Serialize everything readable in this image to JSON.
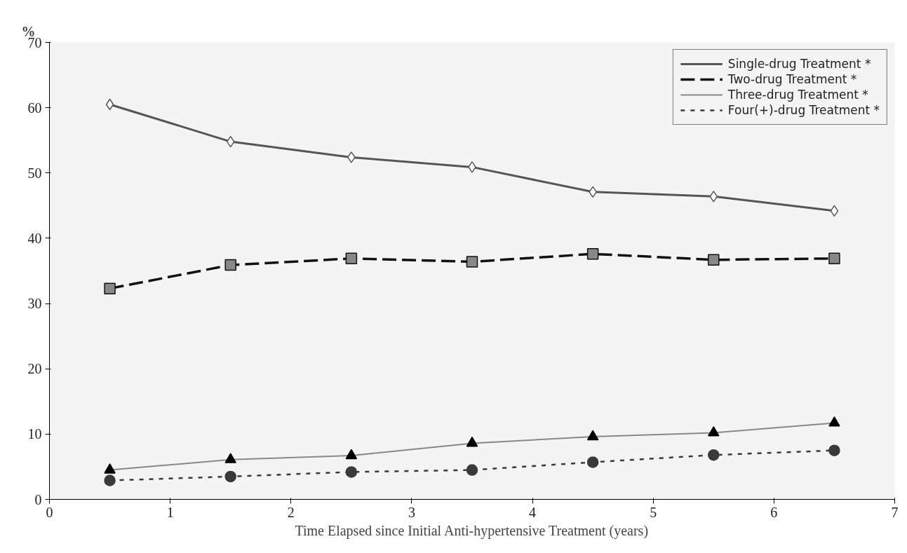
{
  "chart_data": {
    "type": "line",
    "xlabel": "Time Elapsed since Initial Anti-hypertensive Treatment (years)",
    "ylabel": "%",
    "x": [
      0.5,
      1.5,
      2.5,
      3.5,
      4.5,
      5.5,
      6.5
    ],
    "series": [
      {
        "name": "Single-drug Treatment *",
        "color": "#555555",
        "marker": "diamond",
        "line_style": "solid",
        "values": [
          60.5,
          54.8,
          52.4,
          50.9,
          47.1,
          46.4,
          44.2
        ]
      },
      {
        "name": "Two-drug Treatment *",
        "color": "#111111",
        "marker": "square",
        "line_style": "dashed",
        "values": [
          32.3,
          35.9,
          36.9,
          36.4,
          37.6,
          36.7,
          36.9
        ]
      },
      {
        "name": "Three-drug Treatment *",
        "color": "#888888",
        "marker": "triangle",
        "line_style": "solid",
        "values": [
          4.5,
          6.1,
          6.7,
          8.6,
          9.6,
          10.2,
          11.7
        ]
      },
      {
        "name": "Four(+)-drug Treatment *",
        "color": "#3a3a3a",
        "marker": "circle",
        "line_style": "dotted",
        "values": [
          2.9,
          3.5,
          4.2,
          4.5,
          5.7,
          6.8,
          7.5
        ]
      }
    ],
    "xlim": [
      0,
      7
    ],
    "ylim": [
      0,
      70
    ],
    "xticks": [
      0,
      1,
      2,
      3,
      4,
      5,
      6,
      7
    ],
    "yticks": [
      0,
      10,
      20,
      30,
      40,
      50,
      60,
      70
    ],
    "grid": false,
    "legend": "top right"
  }
}
